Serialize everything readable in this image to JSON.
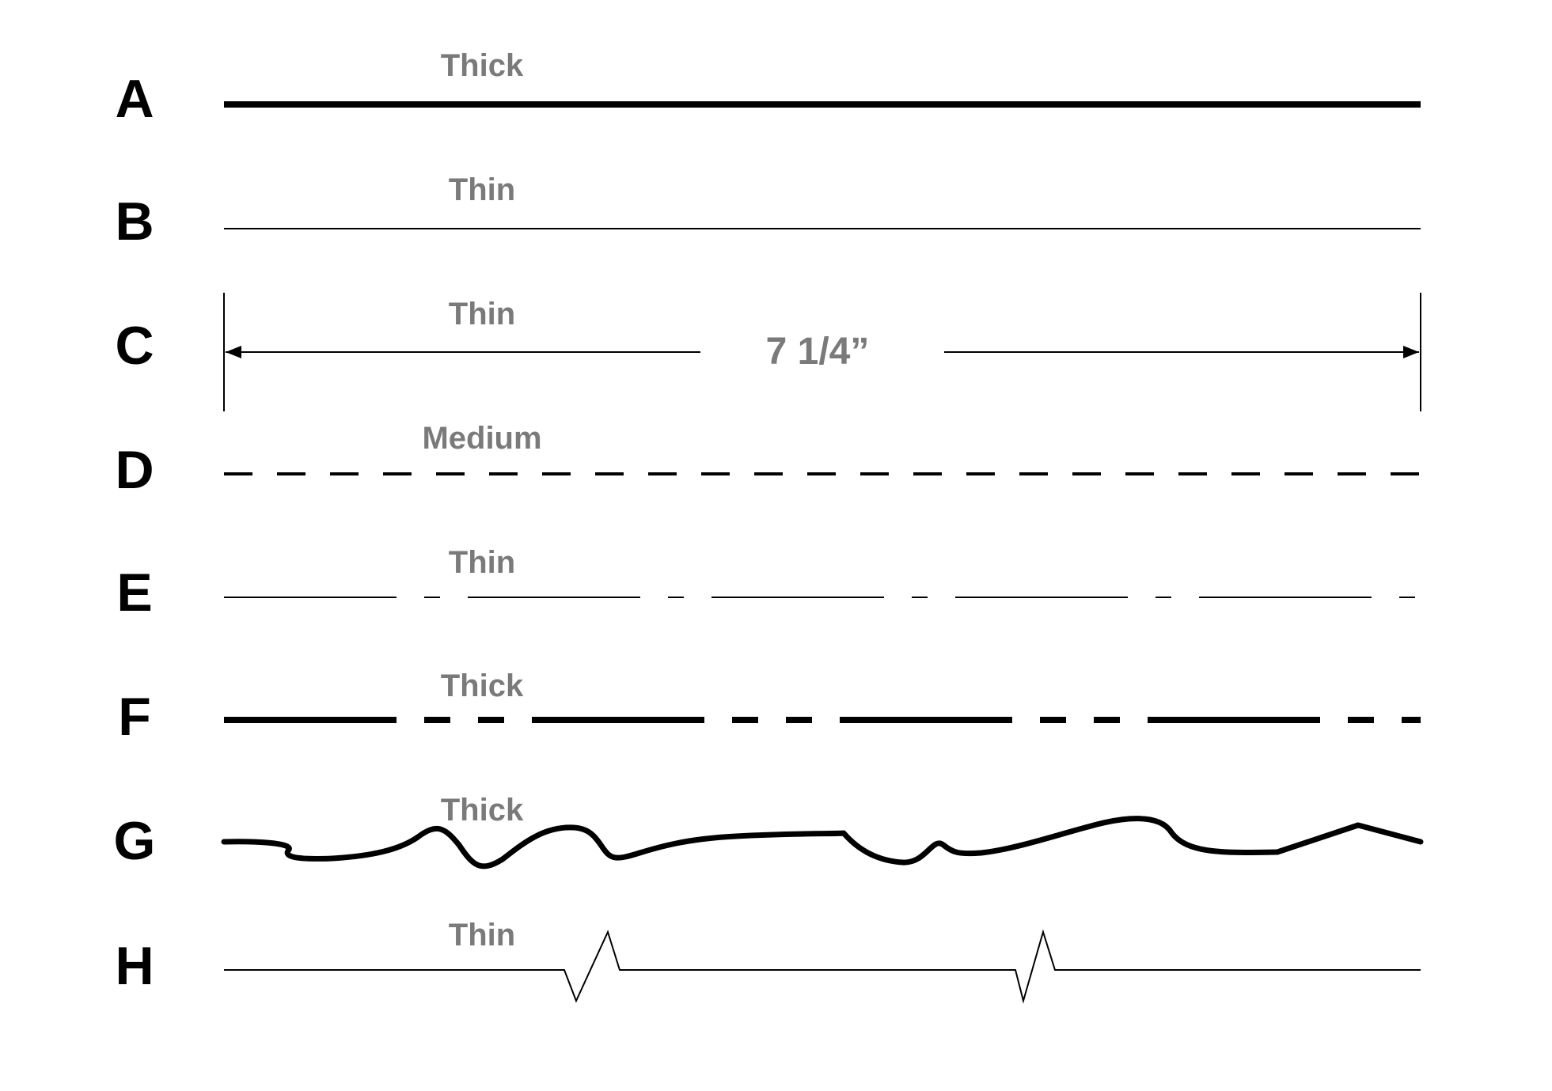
{
  "colors": {
    "line": "#000000",
    "label": "#7a7a7a",
    "background": "#ffffff"
  },
  "rows": [
    {
      "letter": "A",
      "weight": "Thick",
      "style": "solid"
    },
    {
      "letter": "B",
      "weight": "Thin",
      "style": "solid"
    },
    {
      "letter": "C",
      "weight": "Thin",
      "style": "dimension"
    },
    {
      "letter": "D",
      "weight": "Medium",
      "style": "dashed"
    },
    {
      "letter": "E",
      "weight": "Thin",
      "style": "long-short-dash"
    },
    {
      "letter": "F",
      "weight": "Thick",
      "style": "long-short-dash"
    },
    {
      "letter": "G",
      "weight": "Thick",
      "style": "freehand"
    },
    {
      "letter": "H",
      "weight": "Thin",
      "style": "break"
    }
  ],
  "dimension": {
    "text": "7 1/4”"
  }
}
